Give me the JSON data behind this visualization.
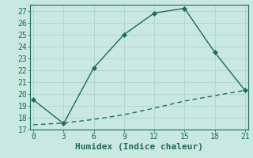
{
  "xlabel": "Humidex (Indice chaleur)",
  "background_color": "#c8e8e0",
  "grid_color": "#b0d4cc",
  "line_color": "#1a6b60",
  "x_main": [
    0,
    3,
    6,
    9,
    12,
    15,
    18,
    21
  ],
  "y_main": [
    19.5,
    17.5,
    22.2,
    25.0,
    26.8,
    27.2,
    23.5,
    20.3
  ],
  "x_lower": [
    0,
    3,
    6,
    9,
    12,
    15,
    18,
    21
  ],
  "y_lower": [
    17.4,
    17.55,
    17.85,
    18.25,
    18.8,
    19.4,
    19.85,
    20.3
  ],
  "xlim": [
    -0.3,
    21.3
  ],
  "ylim": [
    17,
    27.5
  ],
  "xticks": [
    0,
    3,
    6,
    9,
    12,
    15,
    18,
    21
  ],
  "yticks": [
    17,
    18,
    19,
    20,
    21,
    22,
    23,
    24,
    25,
    26,
    27
  ],
  "marker": "D",
  "marker_size": 3,
  "line_width": 1.0,
  "tick_fontsize": 7,
  "xlabel_fontsize": 8
}
